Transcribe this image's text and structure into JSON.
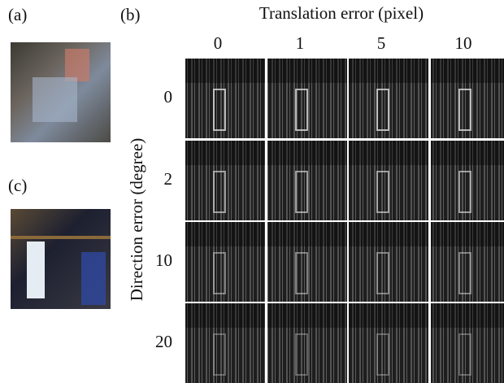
{
  "panels": {
    "a": "(a)",
    "b": "(b)",
    "c": "(c)"
  },
  "grid": {
    "column_title": "Translation error (pixel)",
    "columns": [
      "0",
      "1",
      "5",
      "10"
    ],
    "row_title": "Direction error (degree)",
    "rows": [
      "0",
      "2",
      "10",
      "20"
    ]
  }
}
